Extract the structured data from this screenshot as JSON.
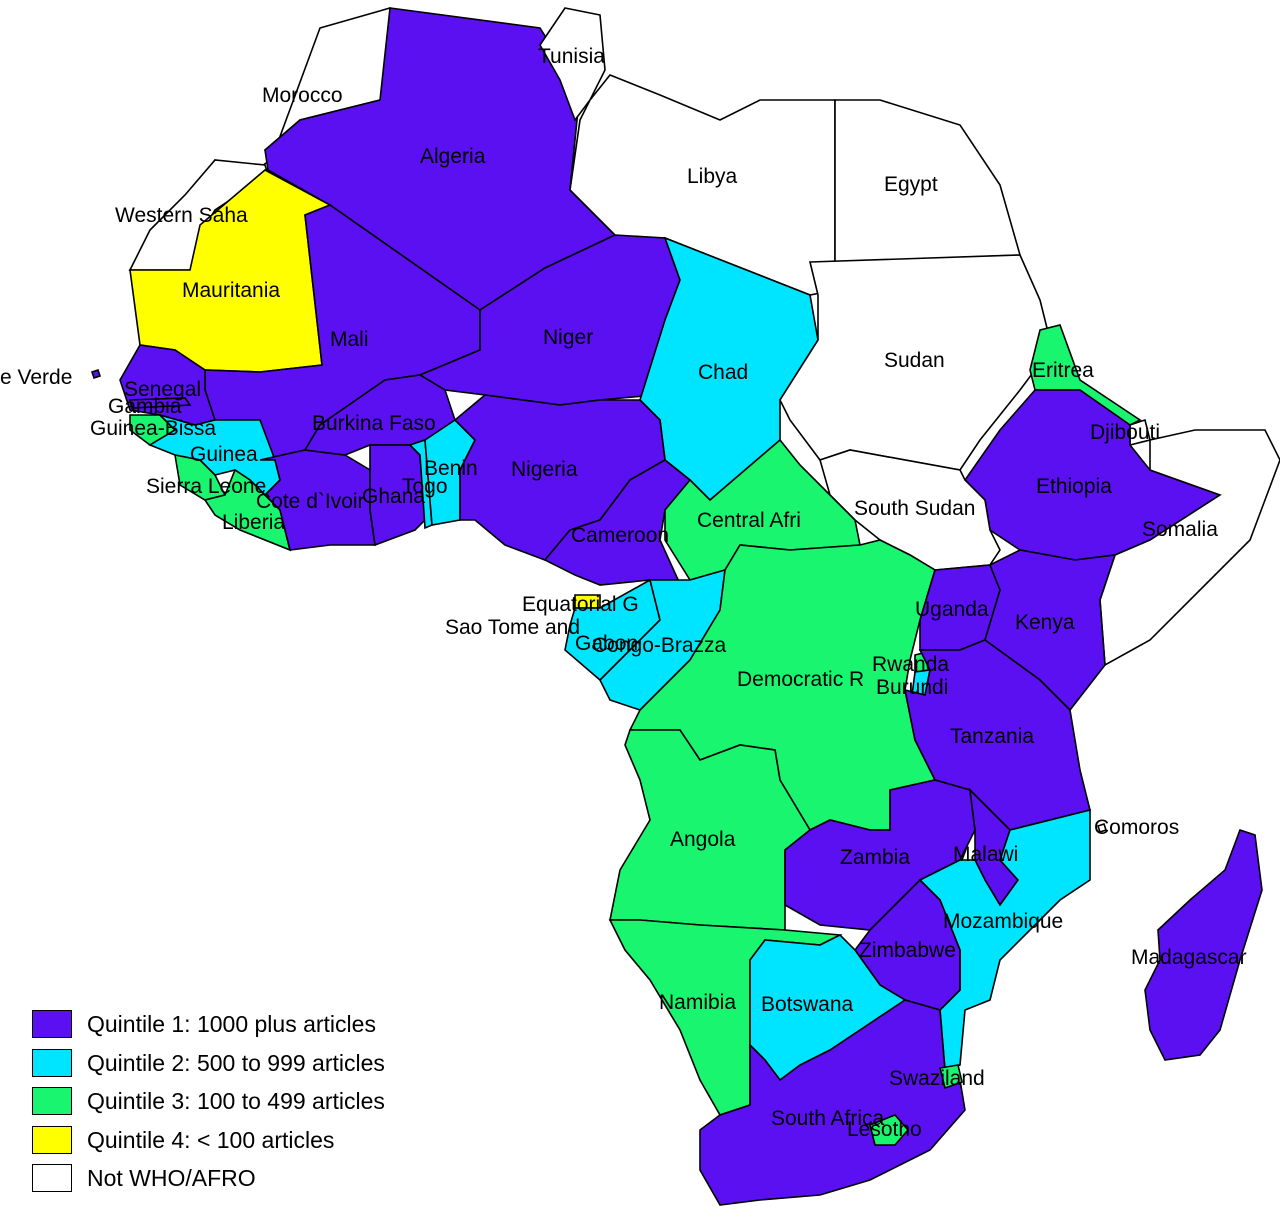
{
  "colors": {
    "q1": "#5a10f0",
    "q2": "#00e5ff",
    "q3": "#19f56e",
    "q4": "#ffff00",
    "none": "#ffffff"
  },
  "legend": [
    {
      "key": "q1",
      "label": "Quintile 1: 1000 plus articles"
    },
    {
      "key": "q2",
      "label": "Quintile 2: 500 to 999 articles"
    },
    {
      "key": "q3",
      "label": "Quintile 3: 100 to 499 articles"
    },
    {
      "key": "q4",
      "label": "Quintile 4: < 100 articles"
    },
    {
      "key": "none",
      "label": "Not WHO/AFRO"
    }
  ],
  "countries": [
    {
      "name": "Morocco",
      "category": "none"
    },
    {
      "name": "Tunisia",
      "category": "none"
    },
    {
      "name": "Algeria",
      "category": "q1"
    },
    {
      "name": "Libya",
      "category": "none"
    },
    {
      "name": "Egypt",
      "category": "none"
    },
    {
      "name": "Western Saha",
      "category": "none"
    },
    {
      "name": "Mauritania",
      "category": "q4"
    },
    {
      "name": "Mali",
      "category": "q1"
    },
    {
      "name": "Niger",
      "category": "q1"
    },
    {
      "name": "Chad",
      "category": "q2"
    },
    {
      "name": "Sudan",
      "category": "none"
    },
    {
      "name": "Eritrea",
      "category": "q3"
    },
    {
      "name": "Djibouti",
      "category": "none"
    },
    {
      "name": "e Verde",
      "category": "q1"
    },
    {
      "name": "Senegal",
      "category": "q1"
    },
    {
      "name": "Gambia",
      "category": "q1"
    },
    {
      "name": "Guinea-Bissa",
      "category": "q3"
    },
    {
      "name": "Guinea",
      "category": "q2"
    },
    {
      "name": "Sierra Leone",
      "category": "q3"
    },
    {
      "name": "Liberia",
      "category": "q3"
    },
    {
      "name": "Cote d`Ivoir",
      "category": "q1"
    },
    {
      "name": "Burkina Faso",
      "category": "q1"
    },
    {
      "name": "Ghana",
      "category": "q1"
    },
    {
      "name": "Togo",
      "category": "q2"
    },
    {
      "name": "Benin",
      "category": "q2"
    },
    {
      "name": "Nigeria",
      "category": "q1"
    },
    {
      "name": "Cameroon",
      "category": "q1"
    },
    {
      "name": "Central Afri",
      "category": "q3"
    },
    {
      "name": "South Sudan",
      "category": "none"
    },
    {
      "name": "Ethiopia",
      "category": "q1"
    },
    {
      "name": "Somalia",
      "category": "none"
    },
    {
      "name": "Equatorial G",
      "category": "q4"
    },
    {
      "name": "Sao Tome and",
      "category": "q4"
    },
    {
      "name": "Gabon",
      "category": "q2"
    },
    {
      "name": "Congo-Brazza",
      "category": "q2"
    },
    {
      "name": "Democratic R",
      "category": "q3"
    },
    {
      "name": "Uganda",
      "category": "q1"
    },
    {
      "name": "Kenya",
      "category": "q1"
    },
    {
      "name": "Rwanda",
      "category": "q3"
    },
    {
      "name": "Burundi",
      "category": "q2"
    },
    {
      "name": "Tanzania",
      "category": "q1"
    },
    {
      "name": "Comoros",
      "category": "none"
    },
    {
      "name": "Angola",
      "category": "q3"
    },
    {
      "name": "Zambia",
      "category": "q1"
    },
    {
      "name": "Malawi",
      "category": "q1"
    },
    {
      "name": "Mozambique",
      "category": "q2"
    },
    {
      "name": "Zimbabwe",
      "category": "q1"
    },
    {
      "name": "Madagascar",
      "category": "q1"
    },
    {
      "name": "Namibia",
      "category": "q3"
    },
    {
      "name": "Botswana",
      "category": "q2"
    },
    {
      "name": "Swaziland",
      "category": "q3"
    },
    {
      "name": "South Africa",
      "category": "q1"
    },
    {
      "name": "Lesotho",
      "category": "q3"
    }
  ]
}
